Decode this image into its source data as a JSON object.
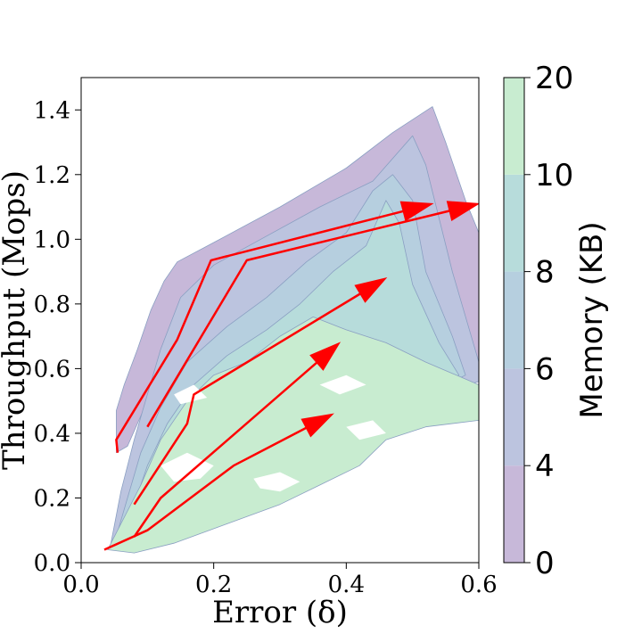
{
  "chart_data": {
    "type": "contour",
    "xlabel": "Error (δ)",
    "ylabel": "Throughput (Mops)",
    "xlim": [
      0.0,
      0.6
    ],
    "ylim": [
      0.0,
      1.5
    ],
    "x_ticks": [
      "0.0",
      "0.2",
      "0.4",
      "0.6"
    ],
    "y_ticks": [
      "0.0",
      "0.2",
      "0.4",
      "0.6",
      "0.8",
      "1.0",
      "1.2",
      "1.4"
    ],
    "x_tick_values": [
      0.0,
      0.2,
      0.4,
      0.6
    ],
    "y_tick_values": [
      0.0,
      0.2,
      0.4,
      0.6,
      0.8,
      1.0,
      1.2,
      1.4
    ],
    "grid": false,
    "colorbar": {
      "label": "Memory (KB)",
      "levels": [
        0,
        4,
        6,
        8,
        10,
        20
      ],
      "tick_labels": [
        "0",
        "4",
        "6",
        "8",
        "10",
        "20"
      ],
      "colors": [
        "#c7b8d9",
        "#bcc4df",
        "#b6cfdf",
        "#b7dcdb",
        "#c8ecd0"
      ]
    },
    "regions": [
      {
        "level_band": "0-4",
        "color": "#c7b8d9",
        "points": [
          [
            0.053,
            0.34
          ],
          [
            0.053,
            0.47
          ],
          [
            0.065,
            0.55
          ],
          [
            0.085,
            0.66
          ],
          [
            0.105,
            0.78
          ],
          [
            0.125,
            0.87
          ],
          [
            0.145,
            0.93
          ],
          [
            0.2,
            0.99
          ],
          [
            0.3,
            1.1
          ],
          [
            0.4,
            1.22
          ],
          [
            0.47,
            1.33
          ],
          [
            0.53,
            1.41
          ],
          [
            0.55,
            1.3
          ],
          [
            0.58,
            1.12
          ],
          [
            0.6,
            1.02
          ],
          [
            0.6,
            0.6
          ],
          [
            0.5,
            0.72
          ],
          [
            0.4,
            0.8
          ],
          [
            0.3,
            0.9
          ],
          [
            0.2,
            0.8
          ],
          [
            0.15,
            0.62
          ],
          [
            0.1,
            0.5
          ],
          [
            0.07,
            0.36
          ]
        ]
      },
      {
        "level_band": "4-6",
        "color": "#bcc4df",
        "points": [
          [
            0.045,
            0.06
          ],
          [
            0.06,
            0.22
          ],
          [
            0.08,
            0.38
          ],
          [
            0.1,
            0.52
          ],
          [
            0.12,
            0.66
          ],
          [
            0.15,
            0.82
          ],
          [
            0.2,
            0.92
          ],
          [
            0.28,
            1.01
          ],
          [
            0.36,
            1.1
          ],
          [
            0.44,
            1.18
          ],
          [
            0.5,
            1.32
          ],
          [
            0.52,
            1.23
          ],
          [
            0.56,
            0.9
          ],
          [
            0.6,
            0.62
          ],
          [
            0.6,
            0.56
          ],
          [
            0.53,
            0.52
          ],
          [
            0.44,
            0.44
          ],
          [
            0.36,
            0.32
          ],
          [
            0.26,
            0.22
          ],
          [
            0.16,
            0.12
          ],
          [
            0.1,
            0.06
          ]
        ]
      },
      {
        "level_band": "6-8",
        "color": "#b6cfdf",
        "points": [
          [
            0.05,
            0.06
          ],
          [
            0.07,
            0.2
          ],
          [
            0.09,
            0.34
          ],
          [
            0.12,
            0.48
          ],
          [
            0.16,
            0.62
          ],
          [
            0.22,
            0.73
          ],
          [
            0.28,
            0.82
          ],
          [
            0.34,
            0.93
          ],
          [
            0.4,
            1.02
          ],
          [
            0.44,
            1.15
          ],
          [
            0.47,
            1.2
          ],
          [
            0.5,
            1.12
          ],
          [
            0.52,
            0.9
          ],
          [
            0.56,
            0.7
          ],
          [
            0.58,
            0.58
          ],
          [
            0.5,
            0.5
          ],
          [
            0.42,
            0.43
          ],
          [
            0.34,
            0.32
          ],
          [
            0.24,
            0.2
          ],
          [
            0.15,
            0.1
          ]
        ]
      },
      {
        "level_band": "8-10",
        "color": "#b7dcdb",
        "points": [
          [
            0.05,
            0.05
          ],
          [
            0.08,
            0.18
          ],
          [
            0.1,
            0.3
          ],
          [
            0.13,
            0.43
          ],
          [
            0.17,
            0.55
          ],
          [
            0.22,
            0.64
          ],
          [
            0.28,
            0.72
          ],
          [
            0.33,
            0.8
          ],
          [
            0.38,
            0.9
          ],
          [
            0.43,
            0.98
          ],
          [
            0.46,
            1.12
          ],
          [
            0.48,
            1.05
          ],
          [
            0.5,
            0.86
          ],
          [
            0.54,
            0.68
          ],
          [
            0.57,
            0.58
          ],
          [
            0.48,
            0.5
          ],
          [
            0.4,
            0.42
          ],
          [
            0.32,
            0.3
          ],
          [
            0.22,
            0.18
          ],
          [
            0.13,
            0.08
          ]
        ]
      },
      {
        "level_band": "10-20",
        "color": "#c8ecd0",
        "points": [
          [
            0.04,
            0.04
          ],
          [
            0.06,
            0.12
          ],
          [
            0.09,
            0.24
          ],
          [
            0.12,
            0.38
          ],
          [
            0.16,
            0.5
          ],
          [
            0.2,
            0.58
          ],
          [
            0.25,
            0.62
          ],
          [
            0.3,
            0.7
          ],
          [
            0.35,
            0.76
          ],
          [
            0.4,
            0.72
          ],
          [
            0.46,
            0.68
          ],
          [
            0.52,
            0.62
          ],
          [
            0.6,
            0.55
          ],
          [
            0.6,
            0.44
          ],
          [
            0.52,
            0.42
          ],
          [
            0.46,
            0.38
          ],
          [
            0.42,
            0.3
          ],
          [
            0.36,
            0.24
          ],
          [
            0.3,
            0.18
          ],
          [
            0.22,
            0.12
          ],
          [
            0.14,
            0.06
          ],
          [
            0.08,
            0.03
          ]
        ]
      }
    ],
    "white_holes": [
      [
        [
          0.12,
          0.3
        ],
        [
          0.16,
          0.34
        ],
        [
          0.2,
          0.3
        ],
        [
          0.18,
          0.26
        ],
        [
          0.14,
          0.25
        ]
      ],
      [
        [
          0.26,
          0.26
        ],
        [
          0.3,
          0.28
        ],
        [
          0.33,
          0.25
        ],
        [
          0.3,
          0.22
        ],
        [
          0.27,
          0.23
        ]
      ],
      [
        [
          0.4,
          0.42
        ],
        [
          0.44,
          0.44
        ],
        [
          0.46,
          0.4
        ],
        [
          0.42,
          0.38
        ]
      ],
      [
        [
          0.36,
          0.55
        ],
        [
          0.4,
          0.58
        ],
        [
          0.43,
          0.55
        ],
        [
          0.39,
          0.52
        ]
      ],
      [
        [
          0.14,
          0.52
        ],
        [
          0.17,
          0.55
        ],
        [
          0.19,
          0.51
        ],
        [
          0.15,
          0.49
        ]
      ]
    ],
    "arrows": [
      {
        "points": [
          [
            0.055,
            0.34
          ],
          [
            0.053,
            0.38
          ],
          [
            0.145,
            0.69
          ],
          [
            0.196,
            0.935
          ],
          [
            0.53,
            1.11
          ]
        ]
      },
      {
        "points": [
          [
            0.1,
            0.42
          ],
          [
            0.25,
            0.935
          ],
          [
            0.6,
            1.11
          ]
        ]
      },
      {
        "points": [
          [
            0.08,
            0.18
          ],
          [
            0.16,
            0.43
          ],
          [
            0.17,
            0.52
          ],
          [
            0.46,
            0.88
          ]
        ]
      },
      {
        "points": [
          [
            0.08,
            0.08
          ],
          [
            0.12,
            0.2
          ],
          [
            0.39,
            0.68
          ]
        ]
      },
      {
        "points": [
          [
            0.035,
            0.04
          ],
          [
            0.1,
            0.1
          ],
          [
            0.23,
            0.3
          ],
          [
            0.38,
            0.46
          ]
        ]
      }
    ]
  }
}
